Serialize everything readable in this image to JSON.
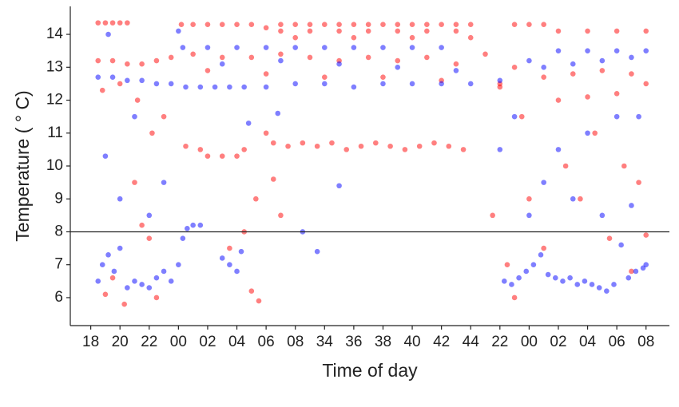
{
  "chart_data": {
    "type": "scatter",
    "x_label": "Time of day",
    "y_label": "Temperature ( ° C)",
    "xlim": [
      16.6,
      57.6
    ],
    "ylim": [
      5.15,
      14.85
    ],
    "xticks": [
      18,
      20,
      22,
      {
        "value": 24,
        "label": "00"
      },
      {
        "value": 26,
        "label": "02"
      },
      {
        "value": 28,
        "label": "04"
      },
      {
        "value": 30,
        "label": "06"
      },
      {
        "value": 32,
        "label": "08"
      },
      34,
      36,
      38,
      40,
      42,
      44,
      {
        "value": 46,
        "label": "22"
      },
      {
        "value": 48,
        "label": "00"
      },
      {
        "value": 50,
        "label": "02"
      },
      {
        "value": 52,
        "label": "04"
      },
      {
        "value": 54,
        "label": "06"
      },
      {
        "value": 56,
        "label": "08"
      }
    ],
    "yticks": [
      6,
      7,
      8,
      9,
      10,
      11,
      12,
      13,
      14
    ],
    "hline": 8,
    "series": [
      {
        "color": "#ff0000",
        "x": [
          18.5,
          19,
          19.5,
          20,
          20.5,
          24.2,
          25,
          26,
          27,
          28,
          29,
          30,
          31,
          32,
          33,
          34,
          35,
          36,
          37,
          38,
          39,
          40,
          41,
          42,
          43,
          44,
          47,
          48,
          49,
          31,
          33,
          35,
          37,
          39,
          41,
          43,
          50,
          52,
          54,
          56,
          32,
          36,
          40,
          44,
          18.5,
          19.5,
          20.5,
          21.5,
          22.5,
          23.5,
          25,
          27,
          29,
          31,
          33,
          35,
          37,
          39,
          41,
          43,
          45,
          47,
          49,
          51,
          53,
          55,
          18.8,
          20,
          26,
          30,
          34,
          38,
          42,
          46,
          50,
          52,
          54,
          56,
          30.5,
          31.5,
          32.5,
          33.5,
          34.5,
          35.5,
          36.5,
          37.5,
          38.5,
          39.5,
          40.5,
          41.5,
          42.5,
          43.5,
          24.5,
          25.5,
          26,
          27,
          28,
          28.5,
          19,
          19.5,
          20.3,
          21,
          21.5,
          22,
          22.5,
          22.2,
          23,
          21.2,
          27.5,
          28.5,
          29,
          29.5,
          29.3,
          30,
          30.5,
          31,
          45.5,
          46,
          46.5,
          47,
          47.5,
          48,
          49,
          50.5,
          51.5,
          52.5,
          53.5,
          54.5,
          55.5,
          56,
          55
        ],
        "values": [
          14.35,
          14.35,
          14.35,
          14.35,
          14.35,
          14.3,
          14.3,
          14.3,
          14.3,
          14.3,
          14.3,
          14.2,
          14.3,
          14.3,
          14.3,
          14.3,
          14.3,
          14.3,
          14.3,
          14.3,
          14.3,
          14.3,
          14.3,
          14.3,
          14.3,
          14.3,
          14.3,
          14.3,
          14.3,
          14.1,
          14.1,
          14.1,
          14.1,
          14.1,
          14.1,
          14.1,
          14.1,
          14.1,
          14.1,
          14.1,
          13.9,
          13.9,
          13.9,
          13.9,
          13.2,
          13.2,
          13.1,
          13.1,
          13.2,
          13.3,
          13.4,
          13.3,
          13.3,
          13.4,
          13.3,
          13.2,
          13.3,
          13.2,
          13.3,
          13.1,
          13.4,
          13.0,
          12.7,
          12.8,
          12.9,
          12.8,
          12.3,
          12.5,
          12.9,
          12.8,
          12.7,
          12.7,
          12.6,
          12.4,
          12.0,
          12.1,
          12.2,
          12.5,
          10.7,
          10.6,
          10.7,
          10.6,
          10.7,
          10.5,
          10.6,
          10.7,
          10.6,
          10.5,
          10.6,
          10.7,
          10.6,
          10.5,
          10.6,
          10.5,
          10.3,
          10.3,
          10.3,
          10.5,
          6.1,
          6.6,
          5.8,
          9.5,
          8.2,
          7.8,
          6.0,
          11.0,
          11.5,
          12.0,
          7.5,
          8.0,
          6.2,
          5.9,
          9.0,
          11.0,
          9.6,
          8.5,
          8.5,
          12.5,
          7.0,
          6.0,
          11.5,
          9.0,
          7.5,
          10.0,
          9.0,
          11.0,
          7.8,
          10.0,
          9.5,
          7.9,
          6.8
        ]
      },
      {
        "color": "#0000ff",
        "x": [
          18.5,
          19.5,
          20.5,
          21.5,
          22.5,
          23.5,
          24.5,
          25.5,
          26.5,
          27.5,
          28.5,
          30,
          32,
          34,
          36,
          38,
          40,
          42,
          44,
          46,
          24.3,
          26,
          28,
          30,
          32,
          34,
          36,
          38,
          40,
          42,
          27,
          31,
          35,
          39,
          43,
          48,
          50,
          52,
          54,
          56,
          49,
          51,
          53,
          55,
          18.5,
          18.8,
          19.2,
          19.6,
          20,
          20.5,
          21,
          21.5,
          22,
          22.5,
          23,
          23.5,
          24,
          24.3,
          24.6,
          25,
          25.5,
          27,
          27.5,
          28,
          28.3,
          46.3,
          46.8,
          47.3,
          47.8,
          48.3,
          48.8,
          49.3,
          49.8,
          50.3,
          50.8,
          51.3,
          51.8,
          52.3,
          52.8,
          53.3,
          53.8,
          54.3,
          54.8,
          55.3,
          55.8,
          56,
          19.2,
          19,
          20,
          21,
          22,
          23,
          24,
          28.8,
          30.8,
          32.5,
          33.5,
          35,
          46,
          47,
          48,
          49,
          50,
          51,
          52,
          53,
          54,
          55,
          55.5
        ],
        "values": [
          12.7,
          12.7,
          12.6,
          12.6,
          12.5,
          12.5,
          12.4,
          12.4,
          12.4,
          12.4,
          12.4,
          12.4,
          12.5,
          12.5,
          12.4,
          12.5,
          12.5,
          12.5,
          12.5,
          12.6,
          13.6,
          13.6,
          13.6,
          13.6,
          13.6,
          13.6,
          13.6,
          13.6,
          13.6,
          13.6,
          13.1,
          13.2,
          13.1,
          13.0,
          12.9,
          13.2,
          13.5,
          13.5,
          13.5,
          13.5,
          13.0,
          13.1,
          13.2,
          13.3,
          6.5,
          7.0,
          7.3,
          6.8,
          7.5,
          6.3,
          6.5,
          6.4,
          6.3,
          6.6,
          6.8,
          6.5,
          7.0,
          7.8,
          8.1,
          8.2,
          8.2,
          7.2,
          7.0,
          6.8,
          7.4,
          6.5,
          6.4,
          6.6,
          6.8,
          7.0,
          7.3,
          6.7,
          6.6,
          6.5,
          6.6,
          6.4,
          6.5,
          6.4,
          6.3,
          6.2,
          6.4,
          7.6,
          6.6,
          6.8,
          6.9,
          7.0,
          14.0,
          10.3,
          9.0,
          11.5,
          8.5,
          9.5,
          14.1,
          11.3,
          11.6,
          8.0,
          7.4,
          9.4,
          10.5,
          11.5,
          8.5,
          9.5,
          10.5,
          9.0,
          11.0,
          8.5,
          11.5,
          8.8,
          11.5
        ]
      }
    ]
  }
}
